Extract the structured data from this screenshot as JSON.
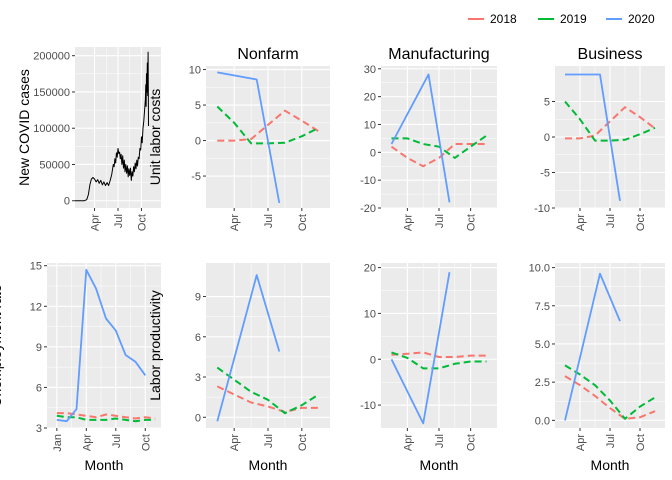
{
  "legend": {
    "entries": [
      {
        "label": "2018",
        "color": "#F8766D"
      },
      {
        "label": "2019",
        "color": "#00BA38"
      },
      {
        "label": "2020",
        "color": "#619CFF"
      }
    ],
    "placement": "top-right"
  },
  "chart_data": [
    {
      "id": "covid",
      "type": "line",
      "title": "",
      "xlabel": "",
      "ylabel": "New COVID cases",
      "xlim": [
        0,
        11
      ],
      "ylim": [
        -10000,
        212000
      ],
      "xticks": [
        {
          "v": 2.5,
          "label": "Apr"
        },
        {
          "v": 5.5,
          "label": "Jul"
        },
        {
          "v": 8.5,
          "label": "Oct"
        }
      ],
      "yticks": [
        {
          "v": 0,
          "label": "0"
        },
        {
          "v": 50000,
          "label": "50000"
        },
        {
          "v": 100000,
          "label": "100000"
        },
        {
          "v": 150000,
          "label": "150000"
        },
        {
          "v": 200000,
          "label": "200000"
        }
      ],
      "grid": true,
      "series": [
        {
          "color": "#000000",
          "width": 1,
          "x": [
            0,
            1.2,
            1.5,
            1.7,
            1.9,
            2.1,
            2.3,
            2.5,
            2.7,
            2.9,
            3.1,
            3.3,
            3.5,
            3.7,
            3.9,
            4.1,
            4.3,
            4.5,
            4.7,
            4.9,
            5.0,
            5.1,
            5.2,
            5.3,
            5.4,
            5.5,
            5.6,
            5.7,
            5.8,
            5.9,
            6.0,
            6.1,
            6.2,
            6.3,
            6.4,
            6.5,
            6.6,
            6.7,
            6.8,
            6.9,
            7.0,
            7.1,
            7.2,
            7.3,
            7.4,
            7.5,
            7.6,
            7.7,
            7.8,
            7.9,
            8.0,
            8.1,
            8.2,
            8.3,
            8.4,
            8.5,
            8.6,
            8.7,
            8.8,
            8.9,
            9.0,
            9.05,
            9.1,
            9.15,
            9.2,
            9.25,
            9.3,
            9.35,
            9.4
          ],
          "y": [
            0,
            0,
            1500,
            8000,
            22000,
            30000,
            32000,
            30000,
            26000,
            29000,
            24000,
            28000,
            22000,
            26000,
            21000,
            25000,
            21000,
            28000,
            36000,
            50000,
            47000,
            58000,
            52000,
            66000,
            60000,
            72000,
            65000,
            67000,
            58000,
            64000,
            50000,
            62000,
            45000,
            56000,
            40000,
            50000,
            38000,
            48000,
            33000,
            44000,
            35000,
            45000,
            28000,
            40000,
            34000,
            47000,
            40000,
            52000,
            44000,
            56000,
            48000,
            60000,
            58000,
            72000,
            70000,
            88000,
            80000,
            100000,
            110000,
            125000,
            140000,
            160000,
            130000,
            175000,
            150000,
            190000,
            145000,
            205000,
            103000
          ]
        }
      ]
    },
    {
      "id": "nonfarm-ulc",
      "type": "line",
      "title": "Nonfarm",
      "xlabel": "",
      "ylabel": "Unit labor costs",
      "xlim": [
        0,
        11
      ],
      "ylim": [
        -9.5,
        10.5
      ],
      "xticks": [
        {
          "v": 2.5,
          "label": "Apr"
        },
        {
          "v": 5.5,
          "label": "Jul"
        },
        {
          "v": 8.5,
          "label": "Oct"
        }
      ],
      "yticks": [
        {
          "v": -5,
          "label": "-5"
        },
        {
          "v": 0,
          "label": "0"
        },
        {
          "v": 5,
          "label": "5"
        },
        {
          "v": 10,
          "label": "10"
        }
      ],
      "grid": true,
      "series": [
        {
          "name": "2018",
          "color": "#F8766D",
          "dashed": true,
          "x": [
            1,
            2.5,
            4,
            5.5,
            7,
            8.5,
            10
          ],
          "y": [
            0,
            0,
            0.2,
            2.2,
            4.2,
            2.8,
            1.3
          ]
        },
        {
          "name": "2019",
          "color": "#00BA38",
          "dashed": true,
          "x": [
            1,
            2.5,
            4,
            5.5,
            7,
            8.5,
            10
          ],
          "y": [
            4.8,
            2.5,
            -0.4,
            -0.4,
            -0.3,
            0.6,
            1.8
          ]
        },
        {
          "name": "2020",
          "color": "#619CFF",
          "x": [
            1,
            4.5,
            6.5
          ],
          "y": [
            9.6,
            8.6,
            -8.8
          ]
        }
      ]
    },
    {
      "id": "manufacturing-ulc",
      "type": "line",
      "title": "Manufacturing",
      "xlabel": "",
      "ylabel": "",
      "xlim": [
        0,
        11
      ],
      "ylim": [
        -20,
        31
      ],
      "xticks": [
        {
          "v": 2.5,
          "label": "Apr"
        },
        {
          "v": 5.5,
          "label": "Jul"
        },
        {
          "v": 8.5,
          "label": "Oct"
        }
      ],
      "yticks": [
        {
          "v": -20,
          "label": "-20"
        },
        {
          "v": -10,
          "label": "-10"
        },
        {
          "v": 0,
          "label": "0"
        },
        {
          "v": 10,
          "label": "10"
        },
        {
          "v": 20,
          "label": "20"
        },
        {
          "v": 30,
          "label": "30"
        }
      ],
      "grid": true,
      "series": [
        {
          "name": "2018",
          "color": "#F8766D",
          "dashed": true,
          "x": [
            1,
            2.5,
            4,
            5.5,
            7,
            8.5,
            10
          ],
          "y": [
            2,
            -2,
            -5,
            -2,
            3,
            3,
            3
          ]
        },
        {
          "name": "2019",
          "color": "#00BA38",
          "dashed": true,
          "x": [
            1,
            2.5,
            4,
            5.5,
            7,
            8.5,
            10
          ],
          "y": [
            5,
            5,
            3,
            2,
            -2,
            2,
            6
          ]
        },
        {
          "name": "2020",
          "color": "#619CFF",
          "x": [
            1,
            4.5,
            6.5
          ],
          "y": [
            3,
            28,
            -18
          ]
        }
      ]
    },
    {
      "id": "business-ulc",
      "type": "line",
      "title": "Business",
      "xlabel": "",
      "ylabel": "",
      "xlim": [
        0,
        11
      ],
      "ylim": [
        -10,
        10
      ],
      "xticks": [
        {
          "v": 2.5,
          "label": "Apr"
        },
        {
          "v": 5.5,
          "label": "Jul"
        },
        {
          "v": 8.5,
          "label": "Oct"
        }
      ],
      "yticks": [
        {
          "v": -10,
          "label": "-10"
        },
        {
          "v": -5,
          "label": "-5"
        },
        {
          "v": 0,
          "label": "0"
        },
        {
          "v": 5,
          "label": "5"
        }
      ],
      "grid": true,
      "series": [
        {
          "name": "2018",
          "color": "#F8766D",
          "dashed": true,
          "x": [
            1,
            2.5,
            4,
            5.5,
            7,
            8.5,
            10
          ],
          "y": [
            -0.2,
            -0.2,
            0.2,
            2.2,
            4.2,
            2.8,
            1.2
          ]
        },
        {
          "name": "2019",
          "color": "#00BA38",
          "dashed": true,
          "x": [
            1,
            2.5,
            4,
            5.5,
            7,
            8.5,
            10
          ],
          "y": [
            5,
            2.5,
            -0.5,
            -0.5,
            -0.4,
            0.4,
            1.3
          ]
        },
        {
          "name": "2020",
          "color": "#619CFF",
          "x": [
            1,
            4.5,
            6.5
          ],
          "y": [
            8.8,
            8.8,
            -9
          ]
        }
      ]
    },
    {
      "id": "unemployment",
      "type": "line",
      "title": "",
      "xlabel": "Month",
      "ylabel": "Unemployment rate",
      "xlim": [
        0,
        11.6
      ],
      "ylim": [
        3,
        15.2
      ],
      "xticks": [
        {
          "v": 1,
          "label": "Jan"
        },
        {
          "v": 4,
          "label": "Apr"
        },
        {
          "v": 7,
          "label": "Jul"
        },
        {
          "v": 10,
          "label": "Oct"
        }
      ],
      "yticks": [
        {
          "v": 3,
          "label": "3"
        },
        {
          "v": 6,
          "label": "6"
        },
        {
          "v": 9,
          "label": "9"
        },
        {
          "v": 12,
          "label": "12"
        },
        {
          "v": 15,
          "label": "15"
        }
      ],
      "grid": true,
      "series": [
        {
          "name": "2018",
          "color": "#F8766D",
          "dashed": true,
          "x": [
            1,
            2,
            3,
            4,
            5,
            6,
            7,
            8,
            9,
            10,
            11
          ],
          "y": [
            4.1,
            4.1,
            4.0,
            3.9,
            3.8,
            4.0,
            3.9,
            3.8,
            3.7,
            3.8,
            3.7
          ]
        },
        {
          "name": "2019",
          "color": "#00BA38",
          "dashed": true,
          "x": [
            1,
            2,
            3,
            4,
            5,
            6,
            7,
            8,
            9,
            10,
            11
          ],
          "y": [
            3.9,
            3.8,
            3.8,
            3.6,
            3.6,
            3.6,
            3.7,
            3.6,
            3.5,
            3.6,
            3.6
          ]
        },
        {
          "name": "2020",
          "color": "#619CFF",
          "x": [
            1,
            2,
            3,
            4,
            5,
            6,
            7,
            8,
            9,
            10
          ],
          "y": [
            3.6,
            3.5,
            4.4,
            14.7,
            13.3,
            11.1,
            10.2,
            8.4,
            7.9,
            6.9
          ]
        }
      ]
    },
    {
      "id": "nonfarm-productivity",
      "type": "line",
      "title": "",
      "xlabel": "Month",
      "ylabel": "Labor productivity",
      "xlim": [
        0,
        11
      ],
      "ylim": [
        -0.8,
        11.5
      ],
      "xticks": [
        {
          "v": 2.5,
          "label": "Apr"
        },
        {
          "v": 5.5,
          "label": "Jul"
        },
        {
          "v": 8.5,
          "label": "Oct"
        }
      ],
      "yticks": [
        {
          "v": 0,
          "label": "0"
        },
        {
          "v": 3,
          "label": "3"
        },
        {
          "v": 6,
          "label": "6"
        },
        {
          "v": 9,
          "label": "9"
        }
      ],
      "grid": true,
      "series": [
        {
          "name": "2018",
          "color": "#F8766D",
          "dashed": true,
          "x": [
            1,
            2.5,
            4,
            5.5,
            7,
            8.5,
            10
          ],
          "y": [
            2.3,
            1.7,
            1.1,
            0.8,
            0.4,
            0.7,
            0.7
          ]
        },
        {
          "name": "2019",
          "color": "#00BA38",
          "dashed": true,
          "x": [
            1,
            2.5,
            4,
            5.5,
            7,
            8.5,
            10
          ],
          "y": [
            3.7,
            2.8,
            1.9,
            1.3,
            0.3,
            0.9,
            1.7
          ]
        },
        {
          "name": "2020",
          "color": "#619CFF",
          "x": [
            1,
            4.5,
            6.5
          ],
          "y": [
            -0.3,
            10.6,
            4.9
          ]
        }
      ]
    },
    {
      "id": "manufacturing-productivity",
      "type": "line",
      "title": "",
      "xlabel": "Month",
      "ylabel": "",
      "xlim": [
        0,
        11
      ],
      "ylim": [
        -15,
        21
      ],
      "xticks": [
        {
          "v": 2.5,
          "label": "Apr"
        },
        {
          "v": 5.5,
          "label": "Jul"
        },
        {
          "v": 8.5,
          "label": "Oct"
        }
      ],
      "yticks": [
        {
          "v": -10,
          "label": "-10"
        },
        {
          "v": 0,
          "label": "0"
        },
        {
          "v": 10,
          "label": "10"
        },
        {
          "v": 20,
          "label": "20"
        }
      ],
      "grid": true,
      "series": [
        {
          "name": "2018",
          "color": "#F8766D",
          "dashed": true,
          "x": [
            1,
            2.5,
            4,
            5.5,
            7,
            8.5,
            10
          ],
          "y": [
            1.0,
            1.2,
            1.5,
            0.5,
            0.5,
            0.8,
            0.8
          ]
        },
        {
          "name": "2019",
          "color": "#00BA38",
          "dashed": true,
          "x": [
            1,
            2.5,
            4,
            5.5,
            7,
            8.5,
            10
          ],
          "y": [
            1.5,
            0.3,
            -2,
            -2,
            -1,
            -0.5,
            -0.5
          ]
        },
        {
          "name": "2020",
          "color": "#619CFF",
          "x": [
            1,
            4,
            6.5
          ],
          "y": [
            0,
            -14,
            19
          ]
        }
      ]
    },
    {
      "id": "business-productivity",
      "type": "line",
      "title": "",
      "xlabel": "Month",
      "ylabel": "",
      "xlim": [
        0,
        11
      ],
      "ylim": [
        -0.5,
        10.3
      ],
      "xticks": [
        {
          "v": 2.5,
          "label": "Apr"
        },
        {
          "v": 5.5,
          "label": "Jul"
        },
        {
          "v": 8.5,
          "label": "Oct"
        }
      ],
      "yticks": [
        {
          "v": 0,
          "label": "0.0"
        },
        {
          "v": 2.5,
          "label": "2.5"
        },
        {
          "v": 5,
          "label": "5.0"
        },
        {
          "v": 7.5,
          "label": "7.5"
        },
        {
          "v": 10,
          "label": "10.0"
        }
      ],
      "grid": true,
      "series": [
        {
          "name": "2018",
          "color": "#F8766D",
          "dashed": true,
          "x": [
            1,
            2.5,
            4,
            5.5,
            7,
            8.5,
            10
          ],
          "y": [
            2.9,
            2.3,
            1.6,
            0.8,
            0.1,
            0.2,
            0.6
          ]
        },
        {
          "name": "2019",
          "color": "#00BA38",
          "dashed": true,
          "x": [
            1,
            2.5,
            4,
            5.5,
            7,
            8.5,
            10
          ],
          "y": [
            3.6,
            3.0,
            2.3,
            1.3,
            0.1,
            0.9,
            1.5
          ]
        },
        {
          "name": "2020",
          "color": "#619CFF",
          "x": [
            1,
            4.5,
            6.5
          ],
          "y": [
            0,
            9.6,
            6.5
          ]
        }
      ]
    }
  ]
}
